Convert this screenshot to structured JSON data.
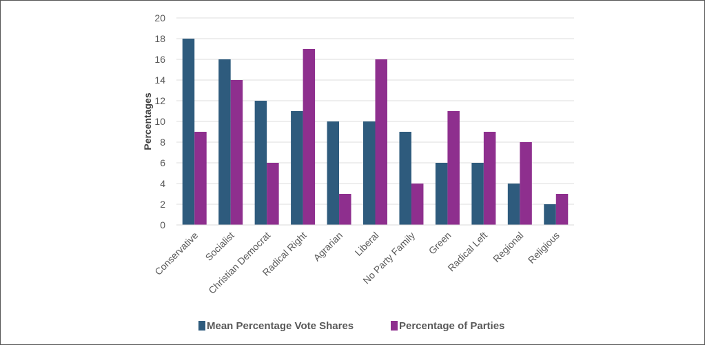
{
  "chart_data": {
    "type": "bar",
    "title": "",
    "xlabel": "",
    "ylabel": "Percentages",
    "ylim": [
      0,
      20
    ],
    "yticks": [
      0,
      2,
      4,
      6,
      8,
      10,
      12,
      14,
      16,
      18,
      20
    ],
    "grid": "horizontal",
    "legend": "bottom",
    "categories": [
      "Conservative",
      "Socialist",
      "Christian Democrat",
      "Radical Right",
      "Agrarian",
      "Liberal",
      "No Party Family",
      "Green",
      "Radical Left",
      "Regional",
      "Religious"
    ],
    "series": [
      {
        "name": "Mean Percentage Vote Shares",
        "color": "#2e5b7d",
        "values": [
          18,
          16,
          12,
          11,
          10,
          10,
          9,
          6,
          6,
          4,
          2
        ]
      },
      {
        "name": "Percentage of Parties",
        "color": "#8e2f8e",
        "values": [
          9,
          14,
          6,
          17,
          3,
          16,
          4,
          11,
          9,
          8,
          3
        ]
      }
    ]
  }
}
